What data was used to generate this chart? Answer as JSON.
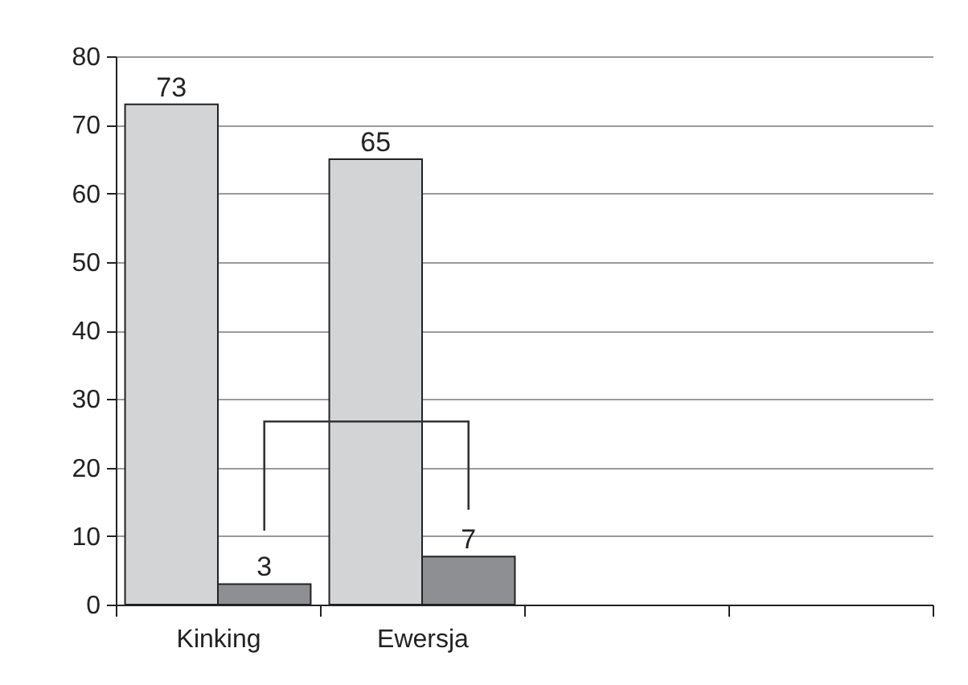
{
  "chart_data": {
    "type": "bar",
    "categories": [
      "Kinking",
      "Ewersja",
      null,
      null
    ],
    "series": [
      {
        "color": "#d3d4d6",
        "values": [
          73,
          65,
          null,
          null
        ]
      },
      {
        "color": "#8e8f92",
        "values": [
          3,
          7,
          null,
          null
        ]
      }
    ],
    "ylim": [
      0,
      80
    ],
    "yticks": [
      0,
      10,
      20,
      30,
      40,
      50,
      60,
      70,
      80
    ],
    "grid": "y",
    "data_labels": true,
    "legend": false
  }
}
